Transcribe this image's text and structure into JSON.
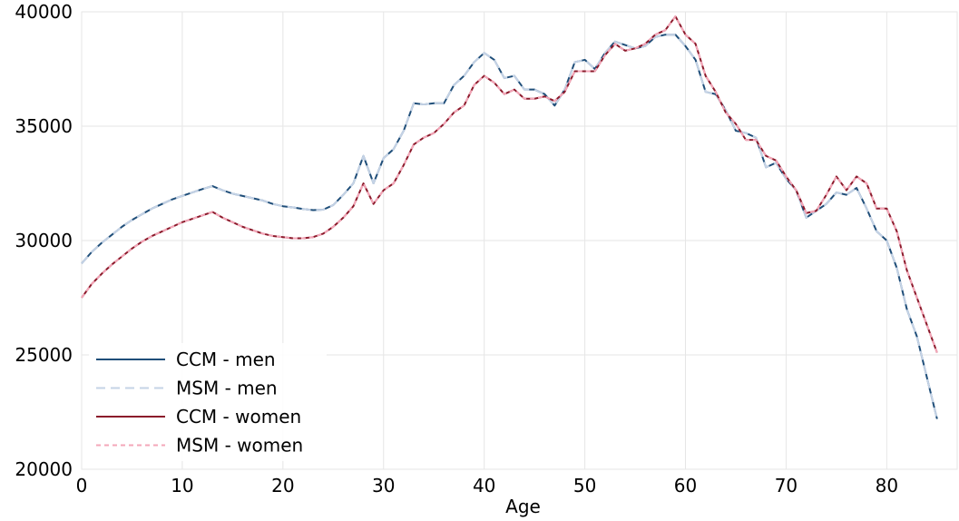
{
  "chart_data": {
    "type": "line",
    "title": "",
    "xlabel": "Age",
    "ylabel": "",
    "xlim": [
      0,
      87
    ],
    "ylim": [
      20000,
      40000
    ],
    "xticks": [
      0,
      10,
      20,
      30,
      40,
      50,
      60,
      70,
      80
    ],
    "yticks": [
      20000,
      25000,
      30000,
      35000,
      40000
    ],
    "xtick_labels": [
      "0",
      "10",
      "20",
      "30",
      "40",
      "50",
      "60",
      "70",
      "80"
    ],
    "ytick_labels": [
      "20000",
      "25000",
      "30000",
      "35000",
      "40000"
    ],
    "grid": true,
    "legend_position": "lower-left",
    "x": [
      0,
      1,
      2,
      3,
      4,
      5,
      6,
      7,
      8,
      9,
      10,
      11,
      12,
      13,
      14,
      15,
      16,
      17,
      18,
      19,
      20,
      21,
      22,
      23,
      24,
      25,
      26,
      27,
      28,
      29,
      30,
      31,
      32,
      33,
      34,
      35,
      36,
      37,
      38,
      39,
      40,
      41,
      42,
      43,
      44,
      45,
      46,
      47,
      48,
      49,
      50,
      51,
      52,
      53,
      54,
      55,
      56,
      57,
      58,
      59,
      60,
      61,
      62,
      63,
      64,
      65,
      66,
      67,
      68,
      69,
      70,
      71,
      72,
      73,
      74,
      75,
      76,
      77,
      78,
      79,
      80,
      81,
      82,
      83,
      84,
      85
    ],
    "series": [
      {
        "name": "CCM - men",
        "color": "#1f4e79",
        "dash": "solid",
        "values": [
          29000,
          29500,
          29900,
          30250,
          30600,
          30900,
          31150,
          31400,
          31600,
          31800,
          31950,
          32100,
          32250,
          32380,
          32200,
          32050,
          31950,
          31850,
          31750,
          31600,
          31500,
          31450,
          31380,
          31330,
          31350,
          31550,
          32000,
          32500,
          33700,
          32500,
          33600,
          34000,
          34800,
          36000,
          35950,
          36000,
          36000,
          36800,
          37200,
          37800,
          38200,
          37900,
          37100,
          37200,
          36600,
          36600,
          36400,
          35900,
          36600,
          37800,
          37900,
          37500,
          38200,
          38700,
          38550,
          38400,
          38500,
          38900,
          39000,
          39000,
          38500,
          37900,
          36500,
          36400,
          35700,
          34800,
          34700,
          34500,
          33200,
          33400,
          32700,
          32200,
          31000,
          31300,
          31600,
          32100,
          32000,
          32300,
          31400,
          30400,
          30000,
          28800,
          27000,
          25800,
          24000,
          22200
        ]
      },
      {
        "name": "MSM - men",
        "color": "#c5d3e6",
        "dash": "10,6",
        "values": [
          29000,
          29500,
          29900,
          30250,
          30600,
          30900,
          31150,
          31400,
          31600,
          31800,
          31950,
          32100,
          32250,
          32380,
          32200,
          32050,
          31950,
          31850,
          31750,
          31600,
          31500,
          31450,
          31380,
          31330,
          31350,
          31550,
          32000,
          32500,
          33700,
          32500,
          33600,
          34000,
          34800,
          36000,
          35950,
          36000,
          36000,
          36800,
          37200,
          37800,
          38200,
          37900,
          37100,
          37200,
          36600,
          36600,
          36400,
          35900,
          36600,
          37800,
          37900,
          37500,
          38200,
          38700,
          38550,
          38400,
          38500,
          38900,
          39000,
          39000,
          38500,
          37900,
          36500,
          36400,
          35700,
          34800,
          34700,
          34500,
          33200,
          33400,
          32700,
          32200,
          31000,
          31300,
          31600,
          32100,
          32000,
          32300,
          31400,
          30400,
          30000,
          28800,
          27000,
          25800,
          24000,
          22200
        ]
      },
      {
        "name": "CCM - women",
        "color": "#8b1a2b",
        "dash": "solid",
        "values": [
          27500,
          28100,
          28550,
          28950,
          29300,
          29650,
          29950,
          30200,
          30400,
          30600,
          30800,
          30950,
          31100,
          31250,
          31000,
          30800,
          30600,
          30450,
          30300,
          30200,
          30150,
          30100,
          30100,
          30150,
          30300,
          30600,
          31000,
          31500,
          32500,
          31600,
          32200,
          32500,
          33300,
          34200,
          34500,
          34700,
          35100,
          35600,
          35900,
          36800,
          37200,
          36900,
          36400,
          36600,
          36200,
          36200,
          36300,
          36100,
          36500,
          37400,
          37400,
          37400,
          38100,
          38600,
          38300,
          38400,
          38600,
          39000,
          39200,
          39800,
          39000,
          38600,
          37200,
          36500,
          35600,
          35100,
          34400,
          34400,
          33700,
          33500,
          32800,
          32200,
          31200,
          31300,
          32000,
          32800,
          32200,
          32800,
          32500,
          31400,
          31400,
          30400,
          28700,
          27500,
          26300,
          25100
        ]
      },
      {
        "name": "MSM - women",
        "color": "#f4a7b9",
        "dash": "5,4",
        "values": [
          27500,
          28100,
          28550,
          28950,
          29300,
          29650,
          29950,
          30200,
          30400,
          30600,
          30800,
          30950,
          31100,
          31250,
          31000,
          30800,
          30600,
          30450,
          30300,
          30200,
          30150,
          30100,
          30100,
          30150,
          30300,
          30600,
          31000,
          31500,
          32500,
          31600,
          32200,
          32500,
          33300,
          34200,
          34500,
          34700,
          35100,
          35600,
          35900,
          36800,
          37200,
          36900,
          36400,
          36600,
          36200,
          36200,
          36300,
          36100,
          36500,
          37400,
          37400,
          37400,
          38100,
          38600,
          38300,
          38400,
          38600,
          39000,
          39200,
          39800,
          39000,
          38600,
          37200,
          36500,
          35600,
          35100,
          34400,
          34400,
          33700,
          33500,
          32800,
          32200,
          31200,
          31300,
          32000,
          32800,
          32200,
          32800,
          32500,
          31400,
          31400,
          30400,
          28700,
          27500,
          26300,
          25100
        ]
      }
    ]
  }
}
